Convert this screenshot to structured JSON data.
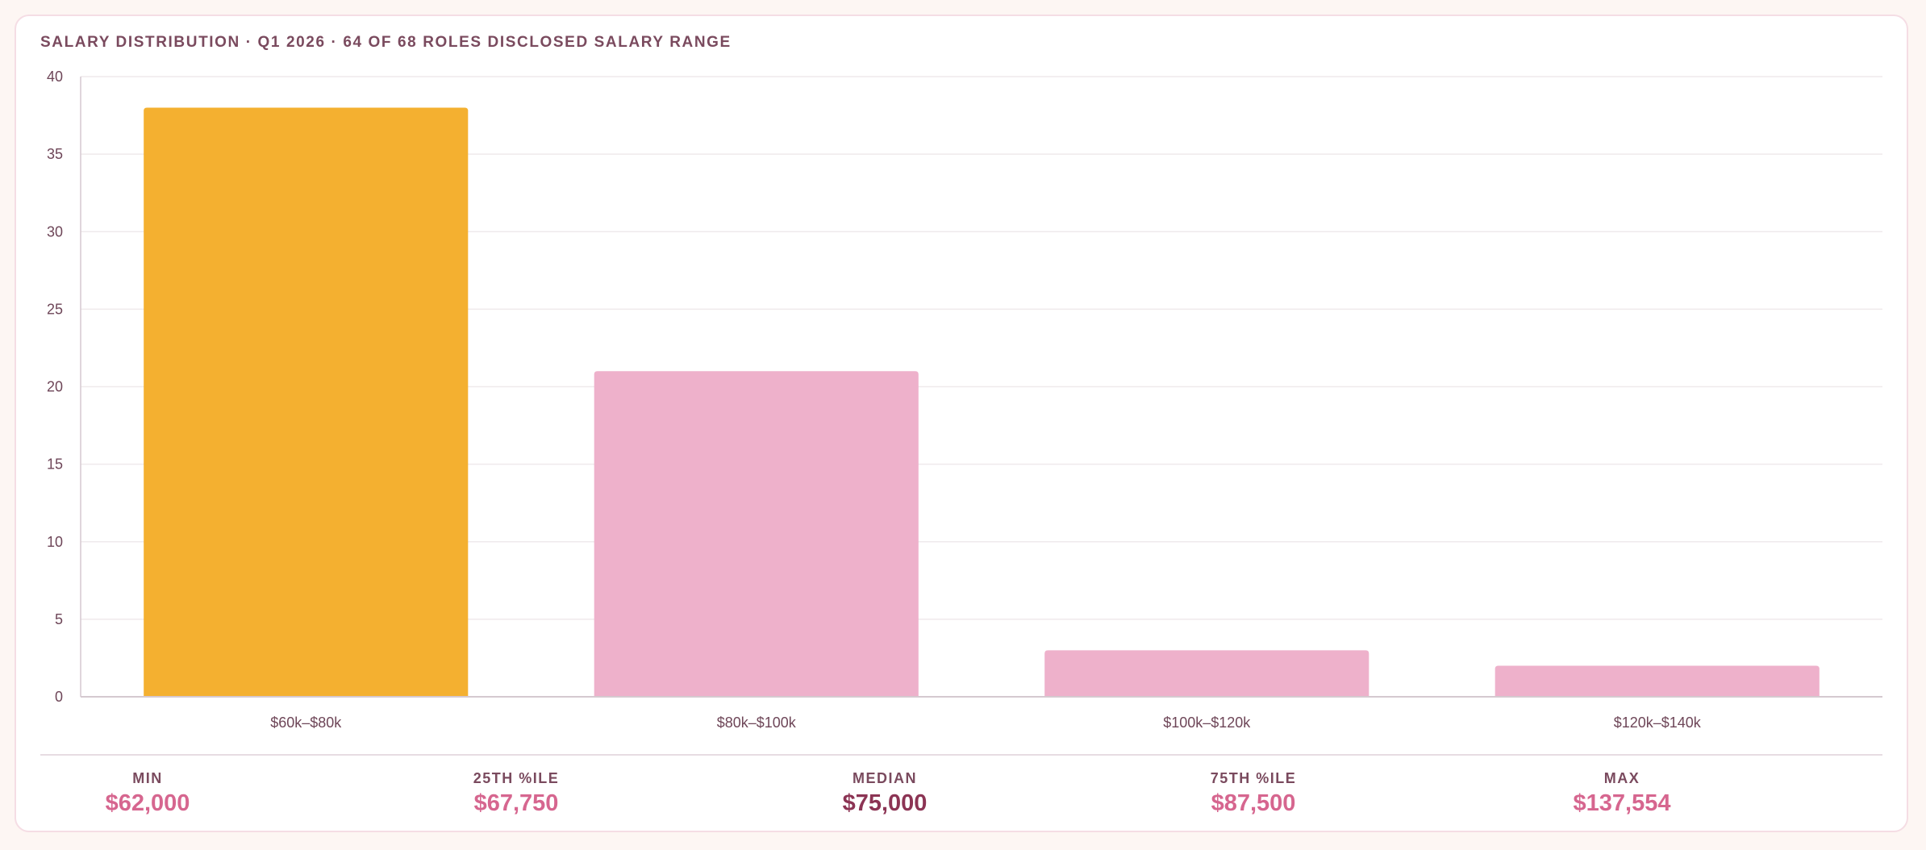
{
  "header": {
    "title": "SALARY DISTRIBUTION · Q1 2026 · 64 OF 68 ROLES DISCLOSED SALARY RANGE"
  },
  "chart_data": {
    "type": "bar",
    "categories": [
      "$60k–$80k",
      "$80k–$100k",
      "$100k–$120k",
      "$120k–$140k"
    ],
    "values": [
      38,
      21,
      3,
      2
    ],
    "ylim": [
      0,
      40
    ],
    "yticks": [
      0,
      5,
      10,
      15,
      20,
      25,
      30,
      35,
      40
    ],
    "xlabel": "",
    "ylabel": "",
    "grid": true,
    "highlight_index": 0,
    "colors": {
      "highlight": "#f4b030",
      "bar": "#eeb1cb",
      "grid": "#efeaec",
      "axis": "#d5c9d0",
      "tick_text": "#6e4658"
    }
  },
  "stats": [
    {
      "label": "MIN",
      "value": "$62,000"
    },
    {
      "label": "25TH %ILE",
      "value": "$67,750"
    },
    {
      "label": "MEDIAN",
      "value": "$75,000"
    },
    {
      "label": "75TH %ILE",
      "value": "$87,500"
    },
    {
      "label": "MAX",
      "value": "$137,554"
    }
  ]
}
